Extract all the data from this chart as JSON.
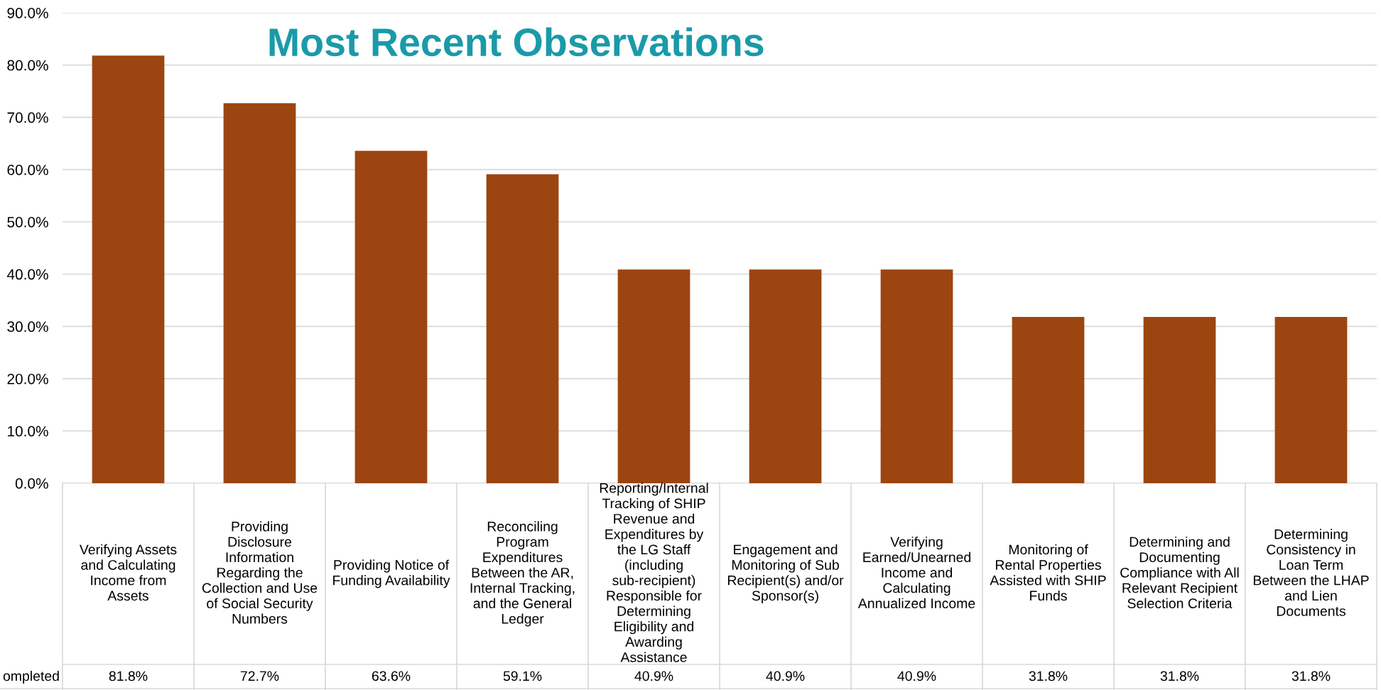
{
  "chart_data": {
    "type": "bar",
    "title": "Most Recent Observations",
    "categories": [
      "Verifying Assets and Calculating Income from Assets",
      "Providing Disclosure Information Regarding the Collection and Use of Social Security Numbers",
      "Providing Notice of Funding Availability",
      "Reconciling Program Expenditures Between the AR, Internal Tracking, and the General Ledger",
      "Reporting/Internal Tracking of SHIP Revenue and Expenditures by the LG Staff (including sub-recipient) Responsible for Determining Eligibility and Awarding Assistance",
      "Engagement and Monitoring of Sub Recipient(s) and/or Sponsor(s)",
      "Verifying Earned/Unearned Income and Calculating Annualized Income",
      "Monitoring of Rental Properties Assisted with SHIP Funds",
      "Determining and Documenting Compliance with All Relevant Recipient Selection Criteria",
      "Determining Consistency in Loan Term Between the LHAP and Lien Documents"
    ],
    "values": [
      81.8,
      72.7,
      63.6,
      59.1,
      40.9,
      40.9,
      40.9,
      31.8,
      31.8,
      31.8
    ],
    "value_labels": [
      "81.8%",
      "72.7%",
      "63.6%",
      "59.1%",
      "40.9%",
      "40.9%",
      "40.9%",
      "31.8%",
      "31.8%",
      "31.8%"
    ],
    "color": "#9c4510",
    "ylim": [
      0,
      90
    ],
    "yticks": [
      {
        "value": 0,
        "label": "0.0%"
      },
      {
        "value": 10,
        "label": "10.0%"
      },
      {
        "value": 20,
        "label": "20.0%"
      },
      {
        "value": 30,
        "label": "30.0%"
      },
      {
        "value": 40,
        "label": "40.0%"
      },
      {
        "value": 50,
        "label": "50.0%"
      },
      {
        "value": 60,
        "label": "60.0%"
      },
      {
        "value": 70,
        "label": "70.0%"
      },
      {
        "value": 80,
        "label": "80.0%"
      },
      {
        "value": 90,
        "label": "90.0%"
      }
    ],
    "grid": "y",
    "annotations": [
      "ompleted"
    ]
  }
}
